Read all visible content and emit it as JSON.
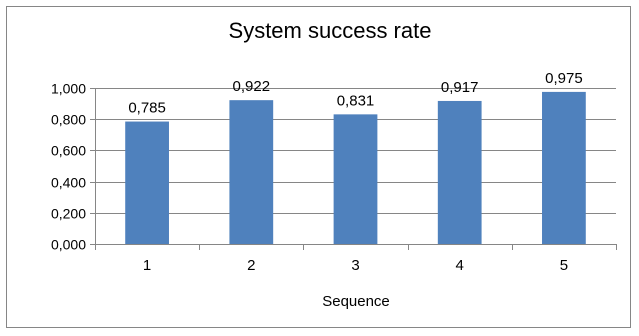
{
  "chart_data": {
    "type": "bar",
    "title": "System success rate",
    "xlabel": "Sequence",
    "ylabel": "",
    "categories": [
      "1",
      "2",
      "3",
      "4",
      "5"
    ],
    "values": [
      0.785,
      0.922,
      0.831,
      0.917,
      0.975
    ],
    "value_labels": [
      "0,785",
      "0,922",
      "0,831",
      "0,917",
      "0,975"
    ],
    "ylim": [
      0,
      1
    ],
    "yticks": [
      0,
      0.2,
      0.4,
      0.6,
      0.8,
      1.0
    ],
    "ytick_labels": [
      "0,000",
      "0,200",
      "0,400",
      "0,600",
      "0,800",
      "1,000"
    ],
    "grid": true,
    "legend": "none",
    "bar_color": "#4F81BD",
    "grid_color": "#868686"
  }
}
